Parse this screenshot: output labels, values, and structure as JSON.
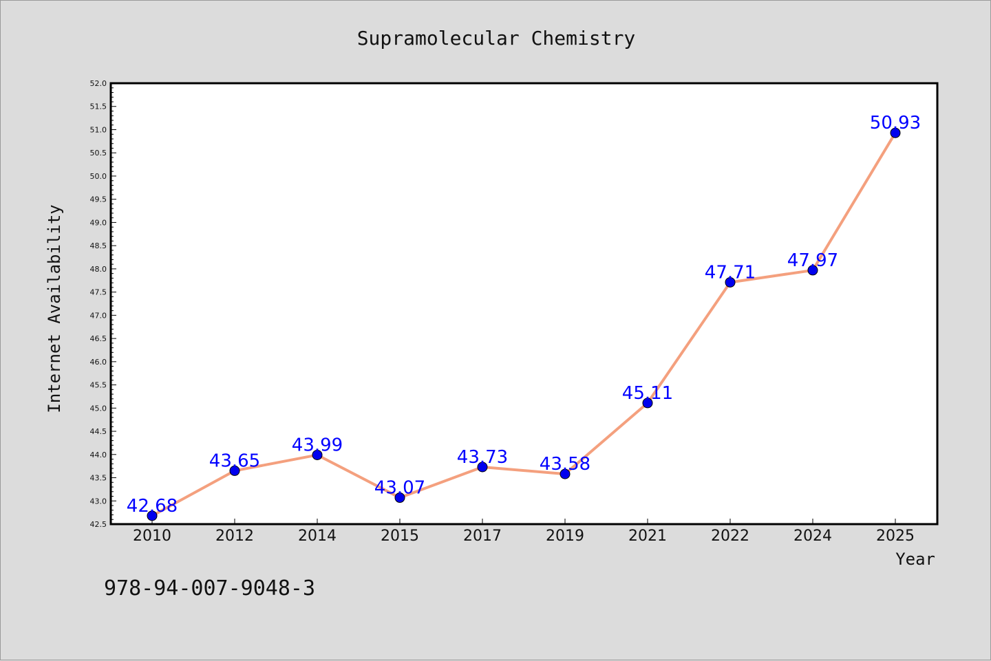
{
  "chart_data": {
    "type": "line",
    "title": "Supramolecular Chemistry",
    "xlabel": "Year",
    "ylabel": "Internet Availability",
    "categories": [
      "2010",
      "2012",
      "2014",
      "2015",
      "2017",
      "2019",
      "2021",
      "2022",
      "2024",
      "2025"
    ],
    "series": [
      {
        "values": [
          42.68,
          43.65,
          43.99,
          43.07,
          43.73,
          43.58,
          45.11,
          47.71,
          47.97,
          50.93
        ],
        "labels": [
          "42.68",
          "43.65",
          "43.99",
          "43.07",
          "43.73",
          "43.58",
          "45.11",
          "47.71",
          "47.97",
          "50.93"
        ]
      }
    ],
    "ylim": [
      42.5,
      52.0
    ],
    "yticks": [
      "42.5",
      "43.0",
      "43.5",
      "44.0",
      "44.5",
      "45.0",
      "45.5",
      "46.0",
      "46.5",
      "47.0",
      "47.5",
      "48.0",
      "48.5",
      "49.0",
      "49.5",
      "50.0",
      "50.5",
      "51.0",
      "51.5",
      "52.0"
    ],
    "grid": false,
    "line_color": "#f4a07e",
    "marker_color": "#0000ee",
    "label_color": "#0000ff"
  },
  "annotation": {
    "isbn": "978-94-007-9048-3"
  }
}
